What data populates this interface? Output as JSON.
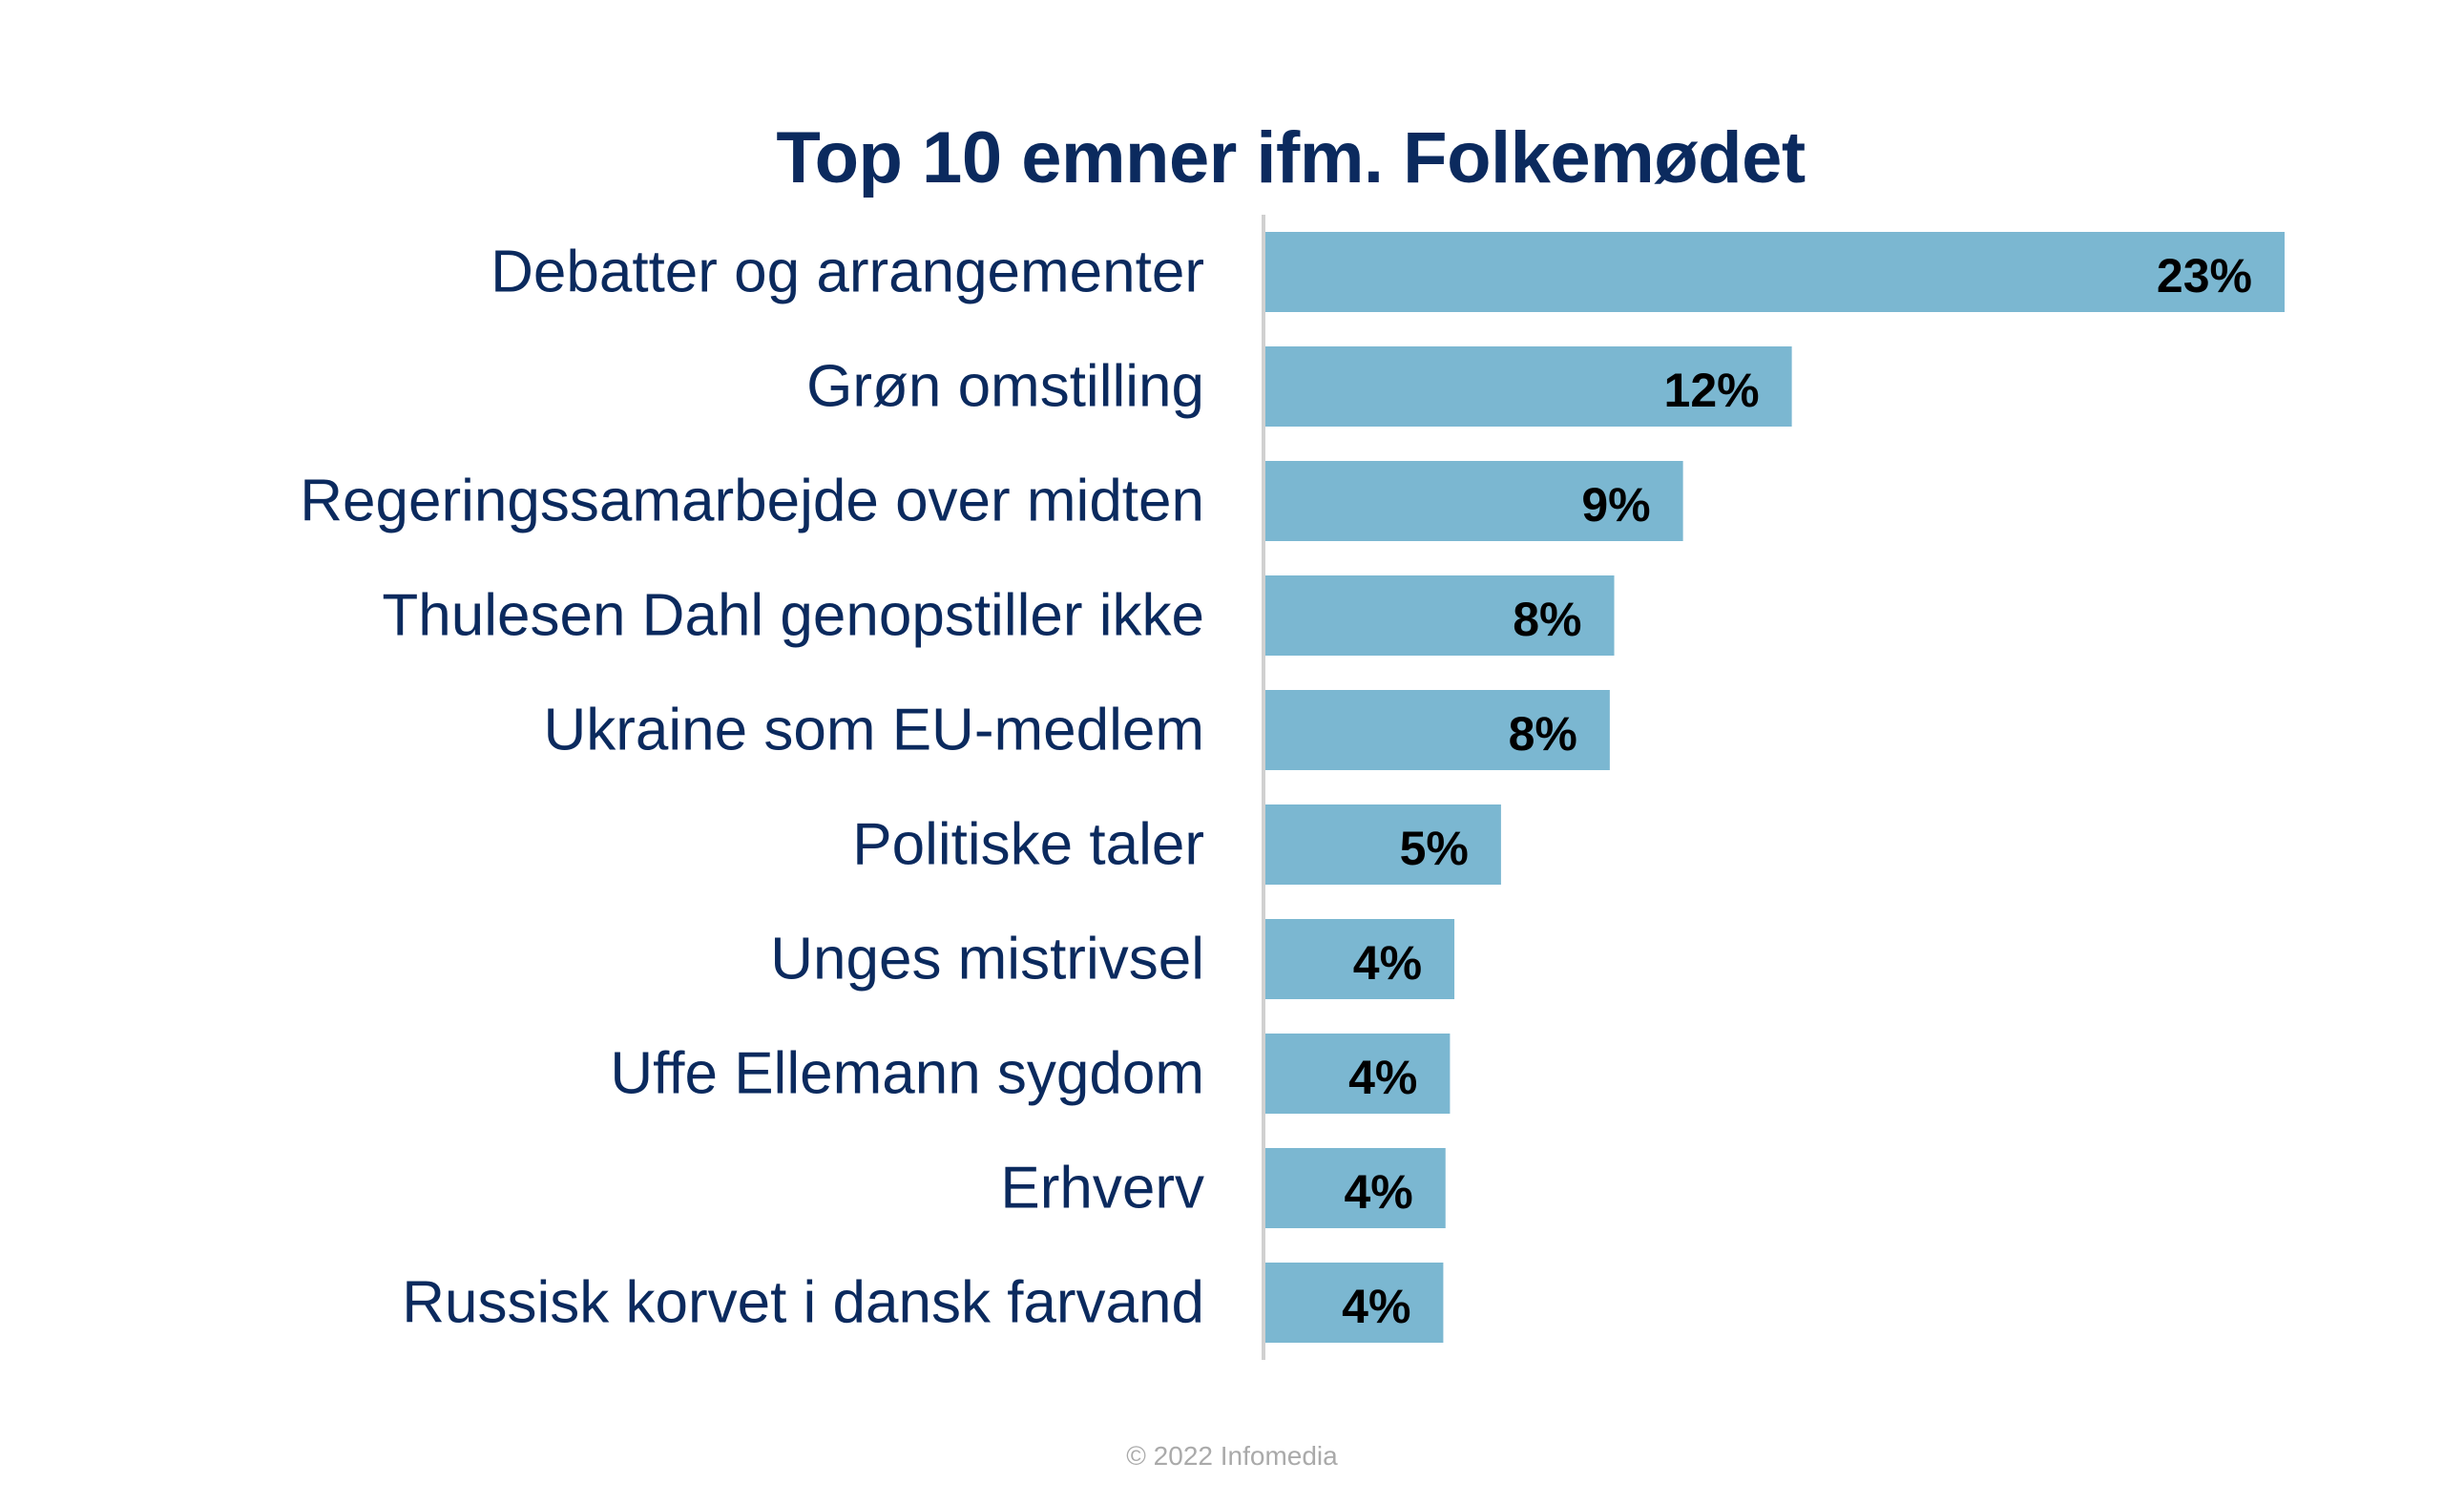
{
  "chart_data": {
    "type": "bar",
    "orientation": "horizontal",
    "title": "Top 10 emner ifm. Folkemødet",
    "xlabel": "",
    "ylabel": "",
    "categories": [
      "Debatter og arrangementer",
      "Grøn omstilling",
      "Regeringssamarbejde over midten",
      "Thulesen Dahl genopstiller ikke",
      "Ukraine som EU-medlem",
      "Politiske taler",
      "Unges mistrivsel",
      "Uffe Ellemann sygdom",
      "Erhverv",
      "Russisk korvet i dansk farvand"
    ],
    "values": [
      23,
      12,
      9,
      8,
      8,
      5,
      4,
      4,
      4,
      4
    ],
    "exact_values": [
      23.0,
      11.9,
      9.45,
      7.9,
      7.8,
      5.35,
      4.3,
      4.2,
      4.1,
      4.05
    ],
    "data_labels": [
      "23%",
      "12%",
      "9%",
      "8%",
      "8%",
      "5%",
      "4%",
      "4%",
      "4%",
      "4%"
    ],
    "xlim": [
      0,
      23
    ],
    "grid": false,
    "legend": "none",
    "colors": {
      "bar": "#7bb7d1",
      "title": "#0b2a5e",
      "category_label": "#0b2a5e",
      "data_label": "#000000",
      "axis_line": "#d0d0d0"
    }
  },
  "footer": {
    "copyright": "© 2022 Infomedia"
  }
}
